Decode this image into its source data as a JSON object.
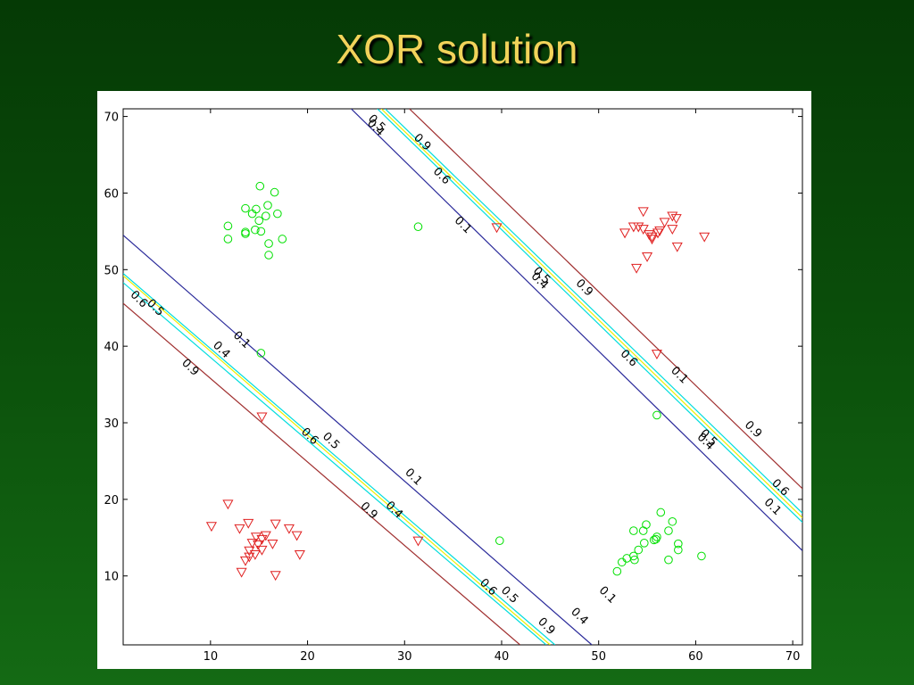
{
  "slide": {
    "title": "XOR solution"
  },
  "chart_data": {
    "type": "scatter",
    "title": "",
    "xlabel": "",
    "ylabel": "",
    "xlim": [
      1,
      71
    ],
    "ylim": [
      1,
      71
    ],
    "xticks": [
      "10",
      "20",
      "30",
      "40",
      "50",
      "60",
      "70"
    ],
    "yticks": [
      "10",
      "20",
      "30",
      "40",
      "50",
      "60",
      "70"
    ],
    "grid": false,
    "series": [
      {
        "marker": "circle",
        "color": "#00e000",
        "points": [
          [
            15.1,
            60.9
          ],
          [
            16.6,
            60.1
          ],
          [
            13.6,
            58.0
          ],
          [
            14.7,
            57.9
          ],
          [
            15.9,
            58.4
          ],
          [
            16.9,
            57.3
          ],
          [
            14.3,
            57.3
          ],
          [
            15.7,
            57.0
          ],
          [
            15.0,
            56.4
          ],
          [
            11.8,
            55.7
          ],
          [
            13.6,
            54.9
          ],
          [
            13.6,
            54.7
          ],
          [
            14.6,
            55.2
          ],
          [
            15.2,
            55.0
          ],
          [
            11.8,
            54.0
          ],
          [
            17.4,
            54.0
          ],
          [
            16.0,
            53.4
          ],
          [
            16.0,
            51.9
          ],
          [
            15.2,
            39.1
          ],
          [
            31.4,
            55.6
          ],
          [
            56.0,
            31.0
          ],
          [
            39.8,
            14.6
          ],
          [
            56.4,
            18.3
          ],
          [
            54.9,
            16.7
          ],
          [
            57.6,
            17.1
          ],
          [
            53.6,
            15.9
          ],
          [
            54.6,
            15.9
          ],
          [
            57.2,
            15.9
          ],
          [
            56.0,
            15.1
          ],
          [
            55.7,
            14.7
          ],
          [
            55.9,
            14.8
          ],
          [
            54.7,
            14.3
          ],
          [
            58.2,
            14.2
          ],
          [
            54.1,
            13.4
          ],
          [
            58.2,
            13.4
          ],
          [
            53.6,
            12.6
          ],
          [
            52.9,
            12.3
          ],
          [
            53.7,
            12.1
          ],
          [
            57.2,
            12.1
          ],
          [
            52.4,
            11.8
          ],
          [
            51.9,
            10.6
          ],
          [
            60.6,
            12.6
          ]
        ]
      },
      {
        "marker": "triangle-down",
        "color": "#e02020",
        "points": [
          [
            54.6,
            57.6
          ],
          [
            57.6,
            57.0
          ],
          [
            58.0,
            56.7
          ],
          [
            53.6,
            55.6
          ],
          [
            54.1,
            55.6
          ],
          [
            56.8,
            56.2
          ],
          [
            54.6,
            55.3
          ],
          [
            56.3,
            55.1
          ],
          [
            57.6,
            55.3
          ],
          [
            52.7,
            54.8
          ],
          [
            55.2,
            54.6
          ],
          [
            55.5,
            54.3
          ],
          [
            56.1,
            54.8
          ],
          [
            55.5,
            54.0
          ],
          [
            60.9,
            54.3
          ],
          [
            58.1,
            53.0
          ],
          [
            55.0,
            51.7
          ],
          [
            53.9,
            50.2
          ],
          [
            39.5,
            55.5
          ],
          [
            56.0,
            39.0
          ],
          [
            15.3,
            30.8
          ],
          [
            31.4,
            14.6
          ],
          [
            11.8,
            19.4
          ],
          [
            10.1,
            16.5
          ],
          [
            13.0,
            16.2
          ],
          [
            13.9,
            16.9
          ],
          [
            16.7,
            16.8
          ],
          [
            18.1,
            16.2
          ],
          [
            18.9,
            15.3
          ],
          [
            14.7,
            15.1
          ],
          [
            15.7,
            15.3
          ],
          [
            15.3,
            14.8
          ],
          [
            14.3,
            14.3
          ],
          [
            14.9,
            14.1
          ],
          [
            16.4,
            14.2
          ],
          [
            14.0,
            13.3
          ],
          [
            15.3,
            13.4
          ],
          [
            14.6,
            12.8
          ],
          [
            19.2,
            12.8
          ],
          [
            14.0,
            12.5
          ],
          [
            13.6,
            12.0
          ],
          [
            13.2,
            10.5
          ],
          [
            16.7,
            10.1
          ]
        ]
      }
    ],
    "contours": [
      {
        "level": "0.1",
        "color": "#2a2a9a",
        "lines": [
          [
            [
              24.5,
              71
            ],
            [
              71,
              13.3
            ]
          ],
          [
            [
              1,
              54.5
            ],
            [
              49.3,
              1
            ]
          ]
        ],
        "labels": [
          [
            36.0,
            55.8
          ],
          [
            58.3,
            36.2
          ],
          [
            67.9,
            19.0
          ],
          [
            13.2,
            40.8
          ],
          [
            30.9,
            22.9
          ],
          [
            50.9,
            7.5
          ]
        ]
      },
      {
        "level": "0.4",
        "color": "#00dddd",
        "lines": [
          [
            [
              27.2,
              71
            ],
            [
              71,
              17.0
            ]
          ],
          [
            [
              1,
              49.5
            ],
            [
              45.5,
              1
            ]
          ]
        ],
        "labels": [
          [
            27.0,
            68.5
          ],
          [
            43.9,
            48.5
          ],
          [
            61.0,
            27.5
          ],
          [
            11.1,
            39.5
          ],
          [
            28.9,
            18.6
          ],
          [
            48.0,
            4.7
          ]
        ]
      },
      {
        "level": "0.5",
        "color": "#eeee00",
        "lines": [
          [
            [
              27.6,
              71
            ],
            [
              71,
              17.6
            ]
          ],
          [
            [
              1,
              49.2
            ],
            [
              45.0,
              1
            ]
          ]
        ],
        "labels": [
          [
            27.1,
            69.1
          ],
          [
            44.1,
            49.2
          ],
          [
            61.3,
            28.0
          ],
          [
            4.3,
            45.0
          ],
          [
            22.4,
            27.6
          ],
          [
            40.8,
            7.5
          ]
        ]
      },
      {
        "level": "0.6",
        "color": "#00dddd",
        "lines": [
          [
            [
              28.0,
              71
            ],
            [
              71,
              18.2
            ]
          ],
          [
            [
              1,
              48.3
            ],
            [
              44.6,
              1
            ]
          ]
        ],
        "labels": [
          [
            33.8,
            62.2
          ],
          [
            53.1,
            38.4
          ],
          [
            68.7,
            21.5
          ],
          [
            2.6,
            46.1
          ],
          [
            20.2,
            28.2
          ],
          [
            38.6,
            8.5
          ]
        ]
      },
      {
        "level": "0.9",
        "color": "#a03030",
        "lines": [
          [
            [
              30.5,
              71
            ],
            [
              71,
              21.4
            ]
          ],
          [
            [
              1,
              45.6
            ],
            [
              41.9,
              1
            ]
          ]
        ],
        "labels": [
          [
            31.8,
            66.6
          ],
          [
            48.5,
            47.6
          ],
          [
            65.9,
            29.1
          ],
          [
            7.9,
            37.2
          ],
          [
            26.3,
            18.5
          ],
          [
            44.6,
            3.4
          ]
        ]
      }
    ]
  }
}
